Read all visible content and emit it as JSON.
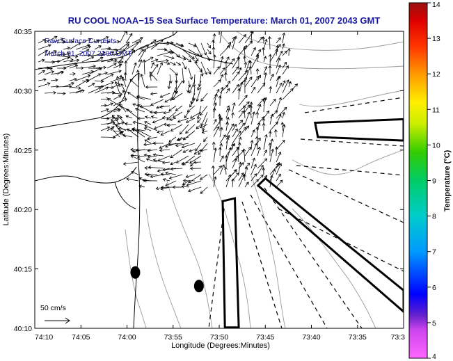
{
  "chart_data": {
    "type": "scatter",
    "title": "RU COOL  NOAA−15  Sea Surface Temperature:  March 01, 2007 2043 GMT",
    "xlabel": "Longitude (Degrees:Minutes)",
    "ylabel": "Latitude (Degrees:Minutes)",
    "xlim": [
      -74.1667,
      -73.5
    ],
    "ylim": [
      40.1667,
      40.5833
    ],
    "x_ticks": [
      {
        "value": -74.1667,
        "label": "74:10"
      },
      {
        "value": -74.0833,
        "label": "74:05"
      },
      {
        "value": -74.0,
        "label": "74:00"
      },
      {
        "value": -73.9167,
        "label": "73:55"
      },
      {
        "value": -73.8333,
        "label": "73:50"
      },
      {
        "value": -73.75,
        "label": "73:45"
      },
      {
        "value": -73.6667,
        "label": "73:40"
      },
      {
        "value": -73.5833,
        "label": "73:35"
      },
      {
        "value": -73.5,
        "label": "73:3"
      }
    ],
    "y_ticks": [
      {
        "value": 40.1667,
        "label": "40:10"
      },
      {
        "value": 40.25,
        "label": "40:15"
      },
      {
        "value": 40.3333,
        "label": "40:20"
      },
      {
        "value": 40.4167,
        "label": "40:25"
      },
      {
        "value": 40.5,
        "label": "40:30"
      },
      {
        "value": 40.5833,
        "label": "40:35"
      }
    ],
    "legend_lines": [
      "Raw Surface Currents",
      "March 01, 2007 2100 GMT"
    ],
    "scale_label": "50 cm/s",
    "colorbar": {
      "label": "Temperature (°C)",
      "range": [
        4,
        14
      ],
      "ticks": [
        "4",
        "5",
        "6",
        "7",
        "8",
        "9",
        "10",
        "11",
        "12",
        "13",
        "14"
      ]
    },
    "stations": [
      {
        "lon": -73.985,
        "lat": 40.245
      },
      {
        "lon": -73.87,
        "lat": 40.226
      }
    ],
    "polygons": [
      [
        [
          -73.66,
          40.455
        ],
        [
          -73.5,
          40.46
        ],
        [
          -73.5,
          40.43
        ],
        [
          -73.655,
          40.435
        ]
      ],
      [
        [
          -73.763,
          40.367
        ],
        [
          -73.75,
          40.377
        ],
        [
          -73.5,
          40.22
        ],
        [
          -73.5,
          40.19
        ]
      ],
      [
        [
          -73.827,
          40.345
        ],
        [
          -73.805,
          40.349
        ],
        [
          -73.798,
          40.168
        ],
        [
          -73.823,
          40.168
        ]
      ]
    ]
  }
}
